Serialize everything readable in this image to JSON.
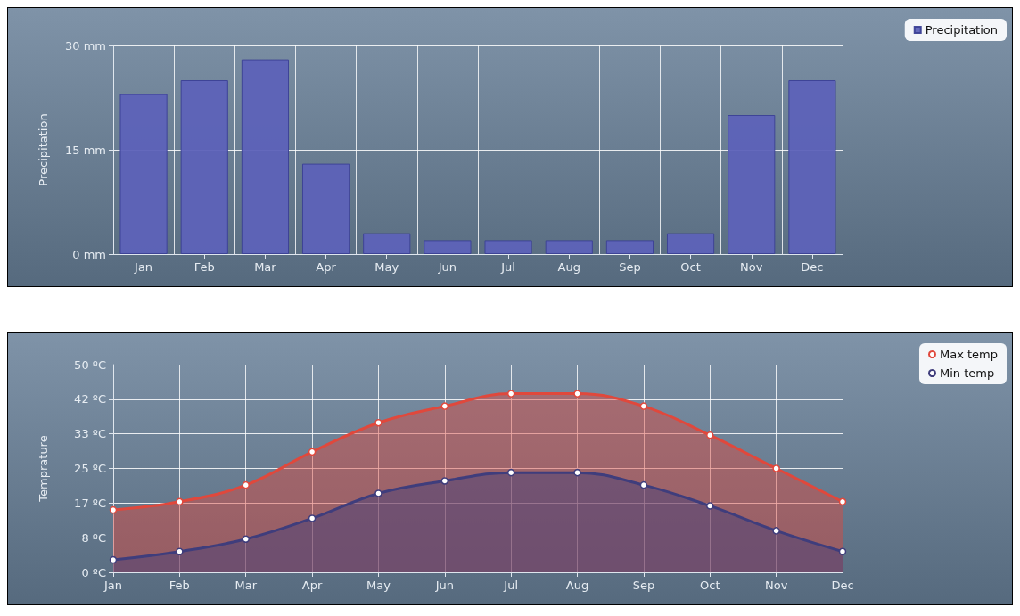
{
  "chart_data": [
    {
      "type": "bar",
      "ylabel": "Precipitation",
      "categories": [
        "Jan",
        "Feb",
        "Mar",
        "Apr",
        "May",
        "Jun",
        "Jul",
        "Aug",
        "Sep",
        "Oct",
        "Nov",
        "Dec"
      ],
      "series": [
        {
          "name": "Precipitation",
          "color": "#5d62b8",
          "values": [
            23,
            25,
            28,
            13,
            3,
            2,
            2,
            2,
            2,
            3,
            20,
            25
          ]
        }
      ],
      "ylim": [
        0,
        30
      ],
      "yticks": [
        {
          "value": 0,
          "label": "0 mm"
        },
        {
          "value": 15,
          "label": "15 mm"
        },
        {
          "value": 30,
          "label": "30 mm"
        }
      ],
      "grid": true,
      "legend": "top right"
    },
    {
      "type": "area",
      "ylabel": "Temprature",
      "categories": [
        "Jan",
        "Feb",
        "Mar",
        "Apr",
        "May",
        "Jun",
        "Jul",
        "Aug",
        "Sep",
        "Oct",
        "Nov",
        "Dec"
      ],
      "series": [
        {
          "name": "Max temp",
          "color": "#e0483c",
          "values": [
            15,
            17,
            21,
            29,
            36,
            40,
            43,
            43,
            40,
            33,
            25,
            17
          ]
        },
        {
          "name": "Min temp",
          "color": "#3f3d7c",
          "values": [
            3,
            5,
            8,
            13,
            19,
            22,
            24,
            24,
            21,
            16,
            10,
            5
          ]
        }
      ],
      "ylim": [
        0,
        50
      ],
      "yticks": [
        {
          "value": 0,
          "label": "0 ºC"
        },
        {
          "value": 8.33,
          "label": "8 ºC"
        },
        {
          "value": 16.67,
          "label": "17 ºC"
        },
        {
          "value": 25,
          "label": "25 ºC"
        },
        {
          "value": 33.33,
          "label": "33 ºC"
        },
        {
          "value": 41.67,
          "label": "42 ºC"
        },
        {
          "value": 50,
          "label": "50 ºC"
        }
      ],
      "grid": true,
      "legend": "top right",
      "marker": "circle"
    }
  ]
}
